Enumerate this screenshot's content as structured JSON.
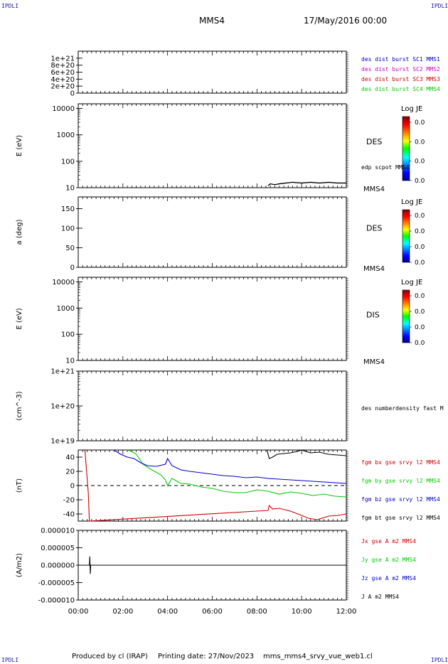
{
  "header": {
    "corner_left": "IPDLI",
    "corner_right": "IPDLI",
    "spacecraft": "MMS4",
    "date": "17/May/2016 00:00"
  },
  "footer": {
    "produced": "Produced by cl (IRAP)",
    "printing": "Printing date: 27/Nov/2023",
    "file": "mms_mms4_srvy_vue_web1.cl",
    "corner_left": "IPDLI",
    "corner_right": "IPDLI"
  },
  "time_axis": {
    "ticks": [
      "00:00",
      "02:00",
      "04:00",
      "06:00",
      "08:00",
      "10:00",
      "12:00"
    ],
    "range_hours": [
      0,
      12
    ]
  },
  "colors": {
    "blue": "#0000cc",
    "magenta": "#cc00cc",
    "red": "#cc0000",
    "green": "#00cc00",
    "black": "#000000"
  },
  "chart_data": [
    {
      "type": "line",
      "panel": "dist",
      "ylabel": "",
      "y_ticks": [
        "1e+21",
        "8e+20",
        "6e+20",
        "4e+20",
        "2e+20",
        "0"
      ],
      "y_tick_values": [
        1e+21,
        8e+20,
        6e+20,
        4e+20,
        2e+20,
        0
      ],
      "ylim": [
        0,
        1.2e+21
      ],
      "zero_line": true,
      "legend": [
        {
          "text": "des dist burst SC1 MMS1",
          "color": "#0000cc"
        },
        {
          "text": "des dist burst SC2 MMS2",
          "color": "#cc00cc"
        },
        {
          "text": "des dist burst SC3 MMS3",
          "color": "#cc0000"
        },
        {
          "text": "des dist burst SC4 MMS4",
          "color": "#00cc00"
        }
      ]
    },
    {
      "type": "heatmap",
      "panel": "des-energy",
      "ylabel": "E (eV)",
      "scale": "log",
      "y_ticks": [
        "10000",
        "1000",
        "100",
        "10"
      ],
      "y_tick_values": [
        10000,
        1000,
        100,
        10
      ],
      "ylim": [
        10,
        15000
      ],
      "side_label": "DES",
      "instrument": "MMS4",
      "colorbar": {
        "title": "Log JE",
        "ticks": [
          "0.0",
          "0.0",
          "0.0",
          "0.0"
        ]
      },
      "overlay": {
        "name": "edp scpot MMS4",
        "x": [
          8.5,
          8.6,
          8.8,
          9.0,
          9.3,
          9.6,
          10.0,
          10.4,
          10.8,
          11.2,
          11.6,
          12.0
        ],
        "y": [
          12,
          14,
          13,
          14,
          15,
          16,
          15,
          16,
          15,
          16,
          15,
          15
        ]
      }
    },
    {
      "type": "heatmap",
      "panel": "des-pitch",
      "ylabel": "a (deg)",
      "y_ticks": [
        "150",
        "100",
        "50",
        "0"
      ],
      "y_tick_values": [
        150,
        100,
        50,
        0
      ],
      "ylim": [
        0,
        180
      ],
      "side_label": "DES",
      "instrument": "MMS4",
      "colorbar": {
        "title": "Log JE",
        "ticks": [
          "0.0",
          "0.0",
          "0.0",
          "0.0"
        ]
      }
    },
    {
      "type": "heatmap",
      "panel": "dis-energy",
      "ylabel": "E (eV)",
      "scale": "log",
      "y_ticks": [
        "10000",
        "1000",
        "100",
        "10"
      ],
      "y_tick_values": [
        10000,
        1000,
        100,
        10
      ],
      "ylim": [
        10,
        15000
      ],
      "side_label": "DIS",
      "instrument": "MMS4",
      "colorbar": {
        "title": "Log JE",
        "ticks": [
          "0.0",
          "0.0",
          "0.0",
          "0.0"
        ]
      }
    },
    {
      "type": "line",
      "panel": "density",
      "ylabel": "(cm^-3)",
      "scale": "log",
      "y_ticks": [
        "1e+21",
        "1e+20",
        "1e+19"
      ],
      "y_tick_values": [
        1e+21,
        1e+20,
        1e+19
      ],
      "ylim": [
        1e+19,
        1e+21
      ],
      "legend": [
        {
          "text": "des numberdensity fast M",
          "color": "#000000"
        }
      ]
    },
    {
      "type": "line",
      "panel": "fgm",
      "ylabel": "(nT)",
      "y_ticks": [
        "40",
        "20",
        "0",
        "-20",
        "-40"
      ],
      "y_tick_values": [
        40,
        20,
        0,
        -20,
        -40
      ],
      "ylim": [
        -50,
        50
      ],
      "zero_line": true,
      "legend": [
        {
          "text": "fgm bx gse srvy l2 MMS4",
          "color": "#cc0000"
        },
        {
          "text": "fgm by gse srvy l2 MMS4",
          "color": "#00cc00"
        },
        {
          "text": "fgm bz gse srvy l2 MMS4",
          "color": "#0000cc"
        },
        {
          "text": "fgm bt gse srvy l2 MMS4",
          "color": "#000000"
        }
      ],
      "series": [
        {
          "name": "fgm bx gse srvy l2 MMS4",
          "color": "#cc0000",
          "x": [
            0.3,
            0.45,
            0.5,
            8.5,
            8.55,
            8.7,
            9.0,
            9.5,
            10.0,
            10.3,
            10.7,
            11.2,
            11.6,
            12.0
          ],
          "y": [
            50,
            -10,
            -50,
            -35,
            -28,
            -33,
            -32,
            -36,
            -42,
            -46,
            -48,
            -43,
            -42,
            -40
          ]
        },
        {
          "name": "fgm by gse srvy l2 MMS4",
          "color": "#00cc00",
          "x": [
            2.2,
            2.4,
            2.6,
            2.9,
            3.3,
            3.7,
            3.9,
            4.0,
            4.2,
            4.6,
            5.0,
            5.5,
            6.0,
            6.5,
            7.0,
            7.5,
            8.0,
            8.5,
            9.0,
            9.5,
            10.0,
            10.5,
            11.0,
            11.5,
            12.0
          ],
          "y": [
            50,
            48,
            44,
            30,
            22,
            15,
            8,
            0,
            10,
            3,
            2,
            -2,
            -4,
            -8,
            -10,
            -10,
            -6,
            -8,
            -12,
            -9,
            -11,
            -14,
            -12,
            -15,
            -16
          ]
        },
        {
          "name": "fgm bz gse srvy l2 MMS4",
          "color": "#0000cc",
          "x": [
            1.6,
            1.9,
            2.2,
            2.5,
            2.8,
            3.1,
            3.5,
            3.9,
            4.0,
            4.2,
            4.6,
            5.0,
            5.5,
            6.0,
            6.5,
            7.0,
            7.5,
            8.0,
            8.5,
            9.0,
            9.5,
            10.0,
            10.5,
            11.0,
            11.5,
            12.0
          ],
          "y": [
            50,
            44,
            40,
            38,
            32,
            28,
            27,
            30,
            38,
            28,
            22,
            20,
            18,
            16,
            14,
            13,
            11,
            12,
            10,
            9,
            8,
            7,
            6,
            5,
            4,
            3
          ]
        },
        {
          "name": "fgm bt gse srvy l2 MMS4",
          "color": "#000000",
          "x": [
            8.45,
            8.55,
            8.7,
            8.9,
            9.2,
            9.5,
            9.8,
            10.0,
            10.4,
            10.8,
            11.2,
            11.6,
            12.0
          ],
          "y": [
            50,
            38,
            40,
            44,
            45,
            46,
            48,
            50,
            46,
            47,
            44,
            43,
            42
          ]
        }
      ]
    },
    {
      "type": "line",
      "panel": "current",
      "ylabel": "(A/m2)",
      "y_ticks": [
        "0.000010",
        "0.000005",
        "0.000000",
        "-0.000005",
        "-0.000010"
      ],
      "y_tick_values": [
        1e-05,
        5e-06,
        0,
        -5e-06,
        -1e-05
      ],
      "ylim": [
        -1e-05,
        1e-05
      ],
      "legend": [
        {
          "text": "Jx gse A m2 MMS4",
          "color": "#cc0000"
        },
        {
          "text": "Jy gse A m2 MMS4",
          "color": "#00cc00"
        },
        {
          "text": "Jz gse A m2 MMS4",
          "color": "#0000cc"
        },
        {
          "text": "J A m2 MMS4",
          "color": "#000000"
        }
      ],
      "series": [
        {
          "name": "J A m2 MMS4",
          "color": "#000000",
          "x": [
            0,
            0.5,
            0.52,
            0.54,
            0.56,
            0.6,
            4.0,
            8.0,
            12.0
          ],
          "y": [
            0,
            0,
            2.5e-06,
            -2.5e-06,
            0,
            0,
            0,
            0,
            0
          ]
        }
      ]
    }
  ]
}
